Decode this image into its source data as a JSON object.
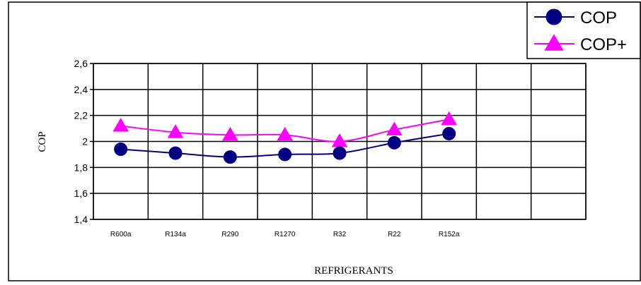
{
  "chart_data": {
    "type": "line",
    "title": "",
    "xlabel": "REFRIGERANTS",
    "ylabel": "COP",
    "categories": [
      "R600a",
      "R134a",
      "R290",
      "R1270",
      "R32",
      "R22",
      "R152a"
    ],
    "extra_empty_categories": 2,
    "ylim": [
      1.4,
      2.6
    ],
    "yticks": [
      "1,4",
      "1,6",
      "1,8",
      "2",
      "2,2",
      "2,4",
      "2,6"
    ],
    "grid": true,
    "legend_position": "top-right",
    "series": [
      {
        "name": "COP",
        "values": [
          1.94,
          1.91,
          1.88,
          1.9,
          1.91,
          1.99,
          2.06
        ],
        "color": "#000080",
        "marker": "circle"
      },
      {
        "name": "COP+",
        "values": [
          2.12,
          2.07,
          2.05,
          2.05,
          2.0,
          2.09,
          2.17
        ],
        "color": "#ff00ff",
        "marker": "triangle"
      }
    ]
  }
}
